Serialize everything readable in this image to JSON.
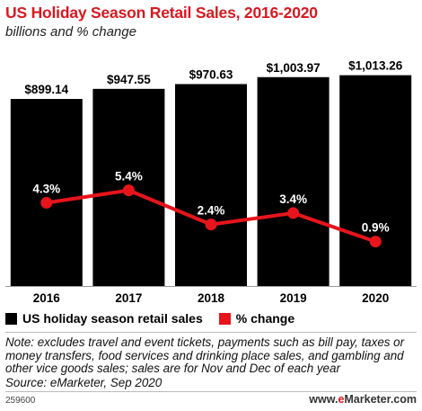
{
  "title": "US Holiday Season Retail Sales, 2016-2020",
  "subtitle": "billions and % change",
  "chart_data": {
    "type": "bar",
    "categories": [
      "2016",
      "2017",
      "2018",
      "2019",
      "2020"
    ],
    "series": [
      {
        "name": "US holiday season retail sales",
        "type": "bar",
        "values": [
          899.14,
          947.55,
          970.63,
          1003.97,
          1013.26
        ],
        "labels": [
          "$899.14",
          "$947.55",
          "$970.63",
          "$1,003.97",
          "$1,013.26"
        ],
        "color": "#000000"
      },
      {
        "name": "% change",
        "type": "line",
        "values": [
          4.3,
          5.4,
          2.4,
          3.4,
          0.9
        ],
        "labels": [
          "4.3%",
          "5.4%",
          "2.4%",
          "3.4%",
          "0.9%"
        ],
        "color": "#e8141b"
      }
    ],
    "bar_ylim": [
      0,
      1150
    ],
    "line_ylim": [
      -3,
      18
    ],
    "grid": false,
    "legend_placement": "bottom-left"
  },
  "legend": {
    "bar_label": "US holiday season retail sales",
    "line_label": "% change"
  },
  "note": "Note: excludes travel and event tickets, payments such as bill pay, taxes or money transfers, food services and drinking place sales, and gambling and other vice goods sales; sales are for Nov and Dec of each year",
  "source": "Source: eMarketer, Sep 2020",
  "chart_id": "259600",
  "brand": {
    "prefix": "www.",
    "e": "e",
    "rest": "Marketer.com"
  }
}
